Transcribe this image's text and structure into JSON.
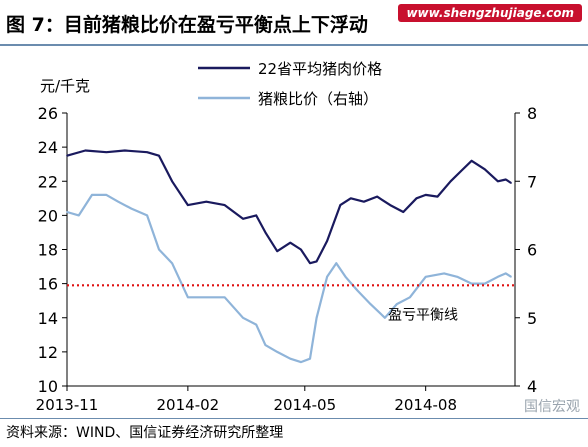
{
  "figure": {
    "title": "图 7：目前猪粮比价在盈亏平衡点上下浮动",
    "site_banner": "www.shengzhujiage.com",
    "source": "资料来源：WIND、国信证券经济研究所整理",
    "watermark": "国信宏观"
  },
  "chart_data": {
    "type": "line",
    "title": "",
    "left_unit": "元/千克",
    "left_axis": {
      "ylim": [
        10,
        26
      ],
      "ticks": [
        "10",
        "12",
        "14",
        "16",
        "18",
        "20",
        "22",
        "24",
        "26"
      ]
    },
    "right_axis": {
      "ylim": [
        4,
        8
      ],
      "ticks": [
        "4",
        "5",
        "6",
        "7",
        "8"
      ]
    },
    "x_ticks": [
      "2013-11",
      "2014-02",
      "2014-05",
      "2014-08"
    ],
    "x_tick_dates": [
      "2013-11-01",
      "2014-02-01",
      "2014-05-01",
      "2014-08-01"
    ],
    "x_range": [
      "2013-11-01",
      "2014-10-08"
    ],
    "series": [
      {
        "name": "22省平均猪肉价格",
        "axis": "left",
        "color": "#1a1a5e",
        "dates": [
          "2013-11-01",
          "2013-11-15",
          "2013-12-01",
          "2013-12-15",
          "2014-01-01",
          "2014-01-10",
          "2014-01-20",
          "2014-02-01",
          "2014-02-15",
          "2014-03-01",
          "2014-03-15",
          "2014-03-25",
          "2014-04-01",
          "2014-04-10",
          "2014-04-20",
          "2014-04-28",
          "2014-05-05",
          "2014-05-10",
          "2014-05-18",
          "2014-05-28",
          "2014-06-05",
          "2014-06-15",
          "2014-06-25",
          "2014-07-05",
          "2014-07-15",
          "2014-07-25",
          "2014-08-01",
          "2014-08-10",
          "2014-08-20",
          "2014-08-28",
          "2014-09-05",
          "2014-09-15",
          "2014-09-25",
          "2014-10-01",
          "2014-10-05"
        ],
        "values": [
          23.5,
          23.8,
          23.7,
          23.8,
          23.7,
          23.5,
          22.0,
          20.6,
          20.8,
          20.6,
          19.8,
          20.0,
          19.0,
          17.9,
          18.4,
          18.0,
          17.2,
          17.3,
          18.5,
          20.6,
          21.0,
          20.8,
          21.1,
          20.6,
          20.2,
          21.0,
          21.2,
          21.1,
          22.0,
          22.6,
          23.2,
          22.7,
          22.0,
          22.1,
          21.9
        ]
      },
      {
        "name": "猪粮比价（右轴）",
        "axis": "right",
        "color": "#8fb4d9",
        "dates": [
          "2013-11-01",
          "2013-11-10",
          "2013-11-20",
          "2013-12-01",
          "2013-12-10",
          "2013-12-20",
          "2014-01-01",
          "2014-01-10",
          "2014-01-20",
          "2014-02-01",
          "2014-02-15",
          "2014-03-01",
          "2014-03-15",
          "2014-03-25",
          "2014-04-01",
          "2014-04-10",
          "2014-04-20",
          "2014-04-28",
          "2014-05-05",
          "2014-05-10",
          "2014-05-18",
          "2014-05-25",
          "2014-06-01",
          "2014-06-10",
          "2014-06-20",
          "2014-07-01",
          "2014-07-10",
          "2014-07-20",
          "2014-08-01",
          "2014-08-15",
          "2014-08-25",
          "2014-09-05",
          "2014-09-15",
          "2014-09-25",
          "2014-10-01",
          "2014-10-05"
        ],
        "values": [
          6.55,
          6.5,
          6.8,
          6.8,
          6.7,
          6.6,
          6.5,
          6.0,
          5.8,
          5.3,
          5.3,
          5.3,
          5.0,
          4.9,
          4.6,
          4.5,
          4.4,
          4.35,
          4.4,
          5.0,
          5.6,
          5.8,
          5.6,
          5.4,
          5.2,
          5.0,
          5.2,
          5.3,
          5.6,
          5.65,
          5.6,
          5.5,
          5.5,
          5.6,
          5.65,
          5.6
        ]
      }
    ],
    "reference_line": {
      "name": "盈亏平衡线",
      "axis": "left",
      "value": 15.9,
      "color": "#e01010",
      "style": "dotted"
    },
    "legend": "top-center",
    "grid": false
  }
}
